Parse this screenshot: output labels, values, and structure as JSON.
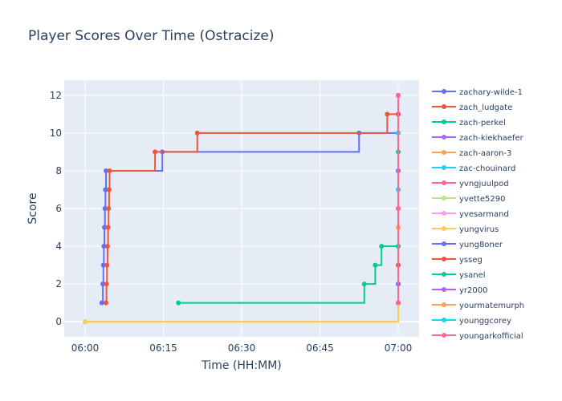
{
  "chart_data": {
    "type": "line",
    "line_shape": "step",
    "title": "Player Scores Over Time (Ostracize)",
    "xlabel": "Time (HH:MM)",
    "ylabel": "Score",
    "x_axis": "time",
    "x_ticks": [
      "06:00",
      "06:15",
      "06:30",
      "06:45",
      "07:00"
    ],
    "x_range": [
      "05:56",
      "07:04"
    ],
    "ylim": [
      -0.8,
      12.8
    ],
    "y_ticks": [
      0,
      2,
      4,
      6,
      8,
      10,
      12
    ],
    "grid": true,
    "plot_background": "#e5ecf6",
    "legend_position": "right",
    "series": [
      {
        "name": "zachary-wilde-1",
        "color": "#636efa",
        "points": [
          [
            "06:03:12",
            1
          ],
          [
            "06:03:24",
            2
          ],
          [
            "06:03:30",
            3
          ],
          [
            "06:03:36",
            4
          ],
          [
            "06:03:42",
            5
          ],
          [
            "06:03:48",
            6
          ],
          [
            "06:03:54",
            7
          ],
          [
            "06:04:00",
            8
          ],
          [
            "06:14:48",
            9
          ],
          [
            "06:52:30",
            10
          ],
          [
            "07:00:00",
            11
          ]
        ]
      },
      {
        "name": "zach_ludgate",
        "color": "#ef553b",
        "points": [
          [
            "06:04:00",
            1
          ],
          [
            "06:04:06",
            2
          ],
          [
            "06:04:12",
            3
          ],
          [
            "06:04:18",
            4
          ],
          [
            "06:04:24",
            5
          ],
          [
            "06:04:30",
            6
          ],
          [
            "06:04:36",
            7
          ],
          [
            "06:04:42",
            8
          ],
          [
            "06:13:24",
            9
          ],
          [
            "06:21:30",
            10
          ],
          [
            "06:57:54",
            11
          ],
          [
            "07:00:00",
            12
          ]
        ]
      },
      {
        "name": "zach-perkel",
        "color": "#00cc96",
        "points": [
          [
            "06:17:54",
            1
          ],
          [
            "06:53:30",
            2
          ],
          [
            "06:55:36",
            3
          ],
          [
            "06:56:48",
            4
          ],
          [
            "07:00:00",
            5
          ]
        ]
      },
      {
        "name": "zach-kiekhaefer",
        "color": "#ab63fa",
        "points": [
          [
            "07:00:00",
            1
          ],
          [
            "07:00:00",
            8
          ],
          [
            "07:00:00",
            12
          ]
        ]
      },
      {
        "name": "zach-aaron-3",
        "color": "#ffa15a",
        "points": [
          [
            "06:00:00",
            0
          ],
          [
            "07:00:00",
            5
          ]
        ]
      },
      {
        "name": "zac-chouinard",
        "color": "#19d3f3",
        "points": [
          [
            "07:00:00",
            7
          ],
          [
            "07:00:00",
            10
          ]
        ]
      },
      {
        "name": "yvngjuulpod",
        "color": "#ff6692",
        "points": [
          [
            "07:00:00",
            1
          ],
          [
            "07:00:00",
            3
          ],
          [
            "07:00:00",
            6
          ],
          [
            "07:00:00",
            12
          ]
        ]
      },
      {
        "name": "yvette5290",
        "color": "#b6e880",
        "points": [
          [
            "06:00:00",
            0
          ],
          [
            "07:00:00",
            5
          ]
        ]
      },
      {
        "name": "yvesarmand",
        "color": "#ff97ff",
        "points": [
          [
            "07:00:00",
            2
          ],
          [
            "07:00:00",
            4
          ]
        ]
      },
      {
        "name": "yungvirus",
        "color": "#fecb52",
        "points": [
          [
            "06:00:00",
            0
          ],
          [
            "07:00:00",
            5
          ]
        ]
      },
      {
        "name": "yung8oner",
        "color": "#636efa",
        "points": [
          [
            "07:00:00",
            2
          ],
          [
            "07:00:00",
            8
          ]
        ]
      },
      {
        "name": "ysseg",
        "color": "#ef553b",
        "points": [
          [
            "07:00:00",
            3
          ],
          [
            "07:00:00",
            11
          ]
        ]
      },
      {
        "name": "ysanel",
        "color": "#00cc96",
        "points": [
          [
            "07:00:00",
            4
          ],
          [
            "07:00:00",
            9
          ]
        ]
      },
      {
        "name": "yr2000",
        "color": "#ab63fa",
        "points": [
          [
            "07:00:00",
            1
          ],
          [
            "07:00:00",
            8
          ]
        ]
      },
      {
        "name": "yourmatemurph",
        "color": "#ffa15a",
        "points": [
          [
            "07:00:00",
            5
          ]
        ]
      },
      {
        "name": "younggcorey",
        "color": "#19d3f3",
        "points": [
          [
            "07:00:00",
            7
          ],
          [
            "07:00:00",
            10
          ]
        ]
      },
      {
        "name": "youngarkofficial",
        "color": "#ff6692",
        "points": [
          [
            "07:00:00",
            1
          ],
          [
            "07:00:00",
            6
          ],
          [
            "07:00:00",
            12
          ]
        ]
      }
    ]
  }
}
